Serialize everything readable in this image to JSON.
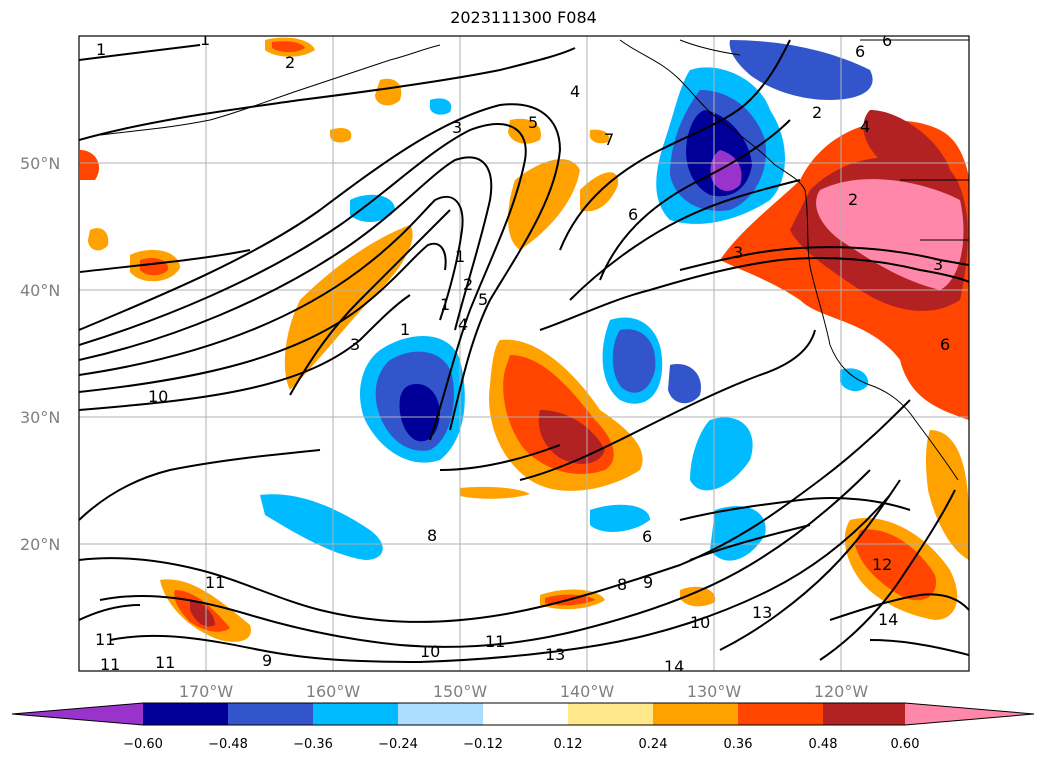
{
  "title": "2023111300 F084",
  "map": {
    "lat_ticks": [
      "50°N",
      "40°N",
      "30°N",
      "20°N"
    ],
    "lon_ticks": [
      "170°W",
      "160°W",
      "150°W",
      "140°W",
      "130°W",
      "120°W"
    ],
    "contour_labels": [
      "1",
      "1",
      "2",
      "3",
      "4",
      "5",
      "3",
      "6",
      "2",
      "6",
      "1",
      "1",
      "2",
      "5",
      "3",
      "1",
      "4",
      "10",
      "11",
      "11",
      "11",
      "9",
      "11",
      "10",
      "11",
      "13",
      "8",
      "9",
      "10",
      "13",
      "14",
      "6",
      "6",
      "8",
      "12",
      "14",
      "3",
      "2",
      "4",
      "6",
      "7"
    ]
  },
  "colorbar": {
    "tick_labels": [
      "−0.60",
      "−0.48",
      "−0.36",
      "−0.24",
      "−0.12",
      "0.12",
      "0.24",
      "0.36",
      "0.48",
      "0.60"
    ],
    "colors": [
      "#9933cc",
      "#000099",
      "#3355cc",
      "#00bbff",
      "#aaddff",
      "#ffffff",
      "#ffe88a",
      "#ffa200",
      "#ff4500",
      "#b22222",
      "#ff88aa"
    ]
  }
}
